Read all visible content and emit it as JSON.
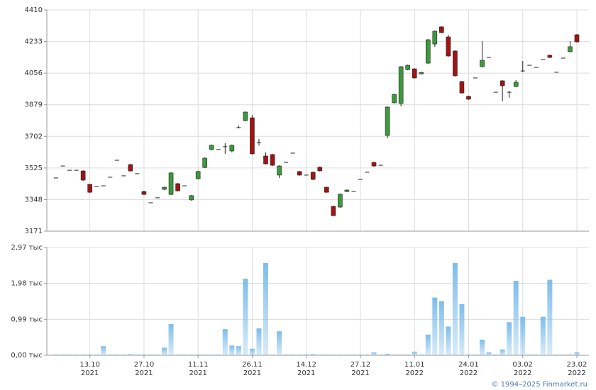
{
  "chart_data": [
    {
      "type": "candlestick",
      "ylim": [
        3171,
        4410
      ],
      "yticks": [
        3171,
        3348,
        3525,
        3702,
        3879,
        4056,
        4233,
        4410
      ],
      "grid": true,
      "up_color": "#3c9a3c",
      "down_color": "#a01414",
      "open": [
        3469,
        3536,
        3512,
        3512,
        3508,
        3433,
        3421,
        3425,
        3473,
        3568,
        3481,
        3544,
        3493,
        3393,
        3330,
        3358,
        3405,
        3377,
        3437,
        3425,
        3346,
        3465,
        3528,
        3628,
        3628,
        3644,
        3620,
        3751,
        3790,
        3806,
        3667,
        3592,
        3600,
        3485,
        3556,
        3608,
        3505,
        3485,
        3501,
        3529,
        3417,
        3310,
        3306,
        3393,
        3393,
        3461,
        3501,
        3556,
        3540,
        3707,
        3890,
        3886,
        4076,
        4080,
        4052,
        4112,
        4219,
        4315,
        4259,
        4180,
        4009,
        3926,
        4029,
        4092,
        4144,
        3949,
        4013,
        3949,
        3981,
        4068,
        4100,
        4088,
        4132,
        4156,
        4061,
        4140,
        4176,
        4271
      ],
      "high": [
        3469,
        3536,
        3512,
        3512,
        3512,
        3437,
        3421,
        3425,
        3473,
        3568,
        3481,
        3548,
        3493,
        3397,
        3330,
        3358,
        3420,
        3501,
        3441,
        3425,
        3374,
        3509,
        3584,
        3656,
        3628,
        3664,
        3656,
        3763,
        3842,
        3822,
        3687,
        3612,
        3604,
        3540,
        3556,
        3608,
        3509,
        3485,
        3505,
        3533,
        3421,
        3314,
        3382,
        3405,
        3393,
        3461,
        3501,
        3560,
        3540,
        3870,
        3941,
        4096,
        4104,
        4084,
        4064,
        4247,
        4295,
        4319,
        4271,
        4184,
        4013,
        3930,
        4029,
        4235,
        4144,
        3949,
        4017,
        3957,
        4017,
        4124,
        4100,
        4088,
        4132,
        4160,
        4061,
        4140,
        4235,
        4275
      ],
      "low": [
        3469,
        3536,
        3512,
        3512,
        3453,
        3385,
        3421,
        3425,
        3473,
        3568,
        3481,
        3505,
        3493,
        3373,
        3330,
        3358,
        3401,
        3373,
        3393,
        3425,
        3342,
        3461,
        3524,
        3624,
        3628,
        3604,
        3612,
        3747,
        3786,
        3600,
        3651,
        3544,
        3536,
        3469,
        3556,
        3608,
        3481,
        3485,
        3457,
        3505,
        3385,
        3254,
        3302,
        3389,
        3393,
        3461,
        3501,
        3532,
        3540,
        3691,
        3886,
        3870,
        4072,
        4025,
        4048,
        4108,
        4203,
        4279,
        4148,
        4037,
        3941,
        3906,
        4029,
        4088,
        4144,
        3949,
        3898,
        3918,
        3977,
        4064,
        4100,
        4088,
        4132,
        4140,
        4061,
        4140,
        4172,
        4227
      ],
      "close": [
        3469,
        3536,
        3512,
        3512,
        3457,
        3389,
        3421,
        3425,
        3473,
        3568,
        3481,
        3508,
        3493,
        3377,
        3330,
        3358,
        3417,
        3497,
        3397,
        3425,
        3370,
        3505,
        3580,
        3652,
        3628,
        3644,
        3652,
        3751,
        3838,
        3604,
        3667,
        3548,
        3540,
        3536,
        3556,
        3608,
        3485,
        3485,
        3461,
        3509,
        3389,
        3258,
        3378,
        3401,
        3393,
        3461,
        3501,
        3536,
        3540,
        3866,
        3937,
        4092,
        4100,
        4029,
        4060,
        4243,
        4291,
        4283,
        4152,
        4041,
        3945,
        3910,
        4029,
        4128,
        4144,
        3949,
        3985,
        3949,
        4005,
        4068,
        4100,
        4088,
        4132,
        4144,
        4061,
        4140,
        4204,
        4231
      ]
    },
    {
      "type": "bar",
      "ylim": [
        0,
        2.97
      ],
      "yticks": [
        {
          "value": 0,
          "label": "0,00 тыс"
        },
        {
          "value": 0.99,
          "label": "0,99 тыс"
        },
        {
          "value": 1.98,
          "label": "1,98 тыс"
        },
        {
          "value": 2.97,
          "label": "2,97 тыс"
        }
      ],
      "grid": true,
      "color": "#7fbdec",
      "categories": [
        null,
        null,
        null,
        null,
        null,
        [
          "13.10",
          "2021"
        ],
        null,
        null,
        null,
        null,
        null,
        null,
        null,
        [
          "27.10",
          "2021"
        ],
        null,
        null,
        null,
        null,
        null,
        null,
        null,
        [
          "11.11",
          "2021"
        ],
        null,
        null,
        null,
        null,
        null,
        null,
        null,
        [
          "26.11",
          "2021"
        ],
        null,
        null,
        null,
        null,
        null,
        null,
        null,
        [
          "14.12",
          "2021"
        ],
        null,
        null,
        null,
        null,
        null,
        null,
        null,
        [
          "27.12",
          "2021"
        ],
        null,
        null,
        null,
        null,
        null,
        null,
        null,
        [
          "11.01",
          "2022"
        ],
        null,
        null,
        null,
        null,
        null,
        null,
        null,
        [
          "24.01",
          "2022"
        ],
        null,
        null,
        null,
        null,
        null,
        null,
        null,
        [
          "03.02",
          "2022"
        ],
        null,
        null,
        null,
        null,
        null,
        null,
        null,
        [
          "23.02",
          "2022"
        ]
      ],
      "values": [
        0.02,
        0.02,
        0.02,
        0.02,
        0.02,
        0.02,
        0.02,
        0.25,
        0.02,
        0.02,
        0.02,
        0.03,
        0.02,
        0.02,
        0.02,
        0.02,
        0.21,
        0.86,
        0.02,
        0.02,
        0.02,
        0.02,
        0.02,
        0.02,
        0.02,
        0.72,
        0.27,
        0.25,
        2.11,
        0.18,
        0.74,
        2.54,
        0.02,
        0.66,
        0.02,
        0.02,
        0.02,
        0.02,
        0.03,
        0.02,
        0.02,
        0.02,
        0.02,
        0.02,
        0.02,
        0.02,
        0.02,
        0.08,
        0.02,
        0.04,
        0.02,
        0.02,
        0.02,
        0.1,
        0.02,
        0.57,
        1.59,
        1.49,
        0.79,
        2.54,
        1.41,
        0.02,
        0.02,
        0.43,
        0.08,
        0.02,
        0.16,
        0.91,
        2.05,
        1.06,
        0.02,
        0.02,
        1.06,
        2.08,
        0.02,
        0.02,
        0.02,
        0.08
      ]
    }
  ],
  "credit": "© 1994–2025 Finmarket.ru"
}
